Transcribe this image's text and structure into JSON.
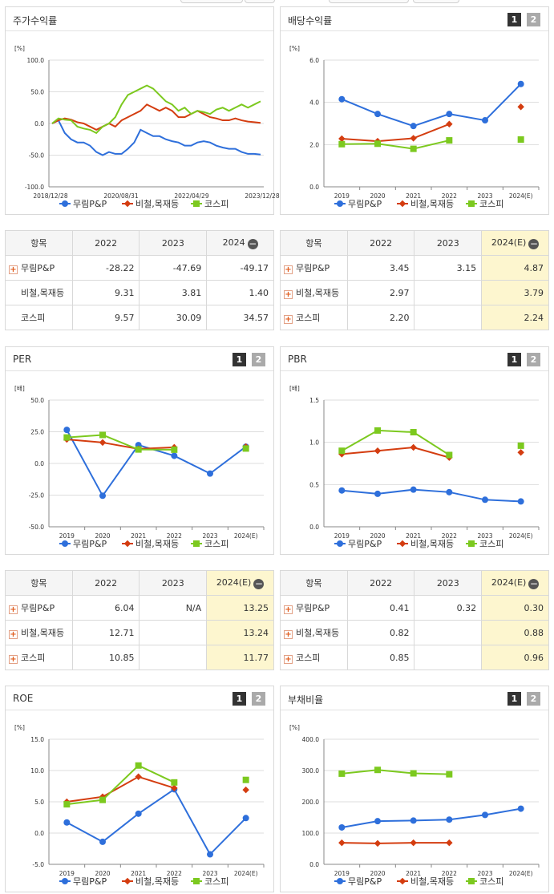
{
  "pager": {
    "p1": "1",
    "p2": "2"
  },
  "legend_names": [
    "무림P&P",
    "비철,목재등",
    "코스피"
  ],
  "colors": {
    "s1": "#2e6fdb",
    "s2": "#d43d10",
    "s3": "#7cc91f"
  },
  "panels": {
    "stock": {
      "title": "주가수익률",
      "unit": "[%]"
    },
    "dividend": {
      "title": "배당수익률",
      "unit": "[%]"
    },
    "per": {
      "title": "PER",
      "unit": "[배]"
    },
    "pbr": {
      "title": "PBR",
      "unit": "[배]"
    },
    "roe": {
      "title": "ROE",
      "unit": "[%]"
    },
    "debt": {
      "title": "부채비율",
      "unit": "[%]"
    }
  },
  "tables": {
    "stock": {
      "head": [
        "항목",
        "2022",
        "2023",
        "2024"
      ],
      "rows": [
        {
          "name": "무림P&P",
          "plus": true,
          "v": [
            "-28.22",
            "-47.69",
            "-49.17"
          ]
        },
        {
          "name": "비철,목재등",
          "plus": false,
          "v": [
            "9.31",
            "3.81",
            "1.40"
          ]
        },
        {
          "name": "코스피",
          "plus": false,
          "v": [
            "9.57",
            "30.09",
            "34.57"
          ]
        }
      ]
    },
    "dividend": {
      "head": [
        "항목",
        "2022",
        "2023",
        "2024(E)"
      ],
      "rows": [
        {
          "name": "무림P&P",
          "plus": true,
          "v": [
            "3.45",
            "3.15",
            "4.87"
          ]
        },
        {
          "name": "비철,목재등",
          "plus": true,
          "v": [
            "2.97",
            "",
            "3.79"
          ]
        },
        {
          "name": "코스피",
          "plus": true,
          "v": [
            "2.20",
            "",
            "2.24"
          ]
        }
      ]
    },
    "per": {
      "head": [
        "항목",
        "2022",
        "2023",
        "2024(E)"
      ],
      "rows": [
        {
          "name": "무림P&P",
          "plus": true,
          "v": [
            "6.04",
            "N/A",
            "13.25"
          ]
        },
        {
          "name": "비철,목재등",
          "plus": true,
          "v": [
            "12.71",
            "",
            "13.24"
          ]
        },
        {
          "name": "코스피",
          "plus": true,
          "v": [
            "10.85",
            "",
            "11.77"
          ]
        }
      ]
    },
    "pbr": {
      "head": [
        "항목",
        "2022",
        "2023",
        "2024(E)"
      ],
      "rows": [
        {
          "name": "무림P&P",
          "plus": true,
          "v": [
            "0.41",
            "0.32",
            "0.30"
          ]
        },
        {
          "name": "비철,목재등",
          "plus": true,
          "v": [
            "0.82",
            "",
            "0.88"
          ]
        },
        {
          "name": "코스피",
          "plus": true,
          "v": [
            "0.85",
            "",
            "0.96"
          ]
        }
      ]
    }
  },
  "chart_data": [
    {
      "id": "stock",
      "type": "line",
      "title": "주가수익률",
      "ylabel": "[%]",
      "ylim": [
        -100,
        100
      ],
      "yticks": [
        "100.0",
        "50.0",
        "0.0",
        "-50.0",
        "-100.0"
      ],
      "xticks": [
        "2018/12/28",
        "2020/08/31",
        "2022/04/29",
        "2023/12/28"
      ],
      "series": [
        {
          "name": "무림P&P",
          "values": [
            0,
            5,
            -15,
            -25,
            -30,
            -30,
            -35,
            -45,
            -50,
            -45,
            -48,
            -48,
            -40,
            -30,
            -10,
            -15,
            -20,
            -20,
            -25,
            -28,
            -30,
            -35,
            -35,
            -30,
            -28,
            -30,
            -35,
            -38,
            -40,
            -40,
            -45,
            -48,
            -48,
            -49
          ]
        },
        {
          "name": "비철,목재등",
          "values": [
            0,
            5,
            8,
            6,
            2,
            0,
            -5,
            -10,
            -5,
            0,
            -5,
            5,
            10,
            15,
            20,
            30,
            25,
            20,
            25,
            20,
            10,
            10,
            15,
            20,
            15,
            10,
            8,
            5,
            5,
            8,
            5,
            3,
            2,
            1
          ]
        },
        {
          "name": "코스피",
          "values": [
            0,
            8,
            6,
            5,
            -5,
            -8,
            -10,
            -15,
            -5,
            0,
            10,
            30,
            45,
            50,
            55,
            60,
            55,
            45,
            35,
            30,
            20,
            25,
            15,
            20,
            18,
            15,
            22,
            25,
            20,
            25,
            30,
            25,
            30,
            35
          ]
        }
      ]
    },
    {
      "id": "dividend",
      "type": "line",
      "title": "배당수익률",
      "ylabel": "[%]",
      "ylim": [
        0,
        6
      ],
      "yticks": [
        "6.0",
        "4.0",
        "2.0",
        "0.0"
      ],
      "categories": [
        "2019",
        "2020",
        "2021",
        "2022",
        "2023",
        "2024(E)"
      ],
      "series": [
        {
          "name": "무림P&P",
          "values": [
            4.15,
            3.45,
            2.88,
            3.45,
            3.15,
            4.87
          ]
        },
        {
          "name": "비철,목재등",
          "values": [
            2.28,
            2.16,
            2.3,
            2.97,
            null,
            3.79
          ]
        },
        {
          "name": "코스피",
          "values": [
            2.02,
            2.04,
            1.8,
            2.2,
            null,
            2.24
          ]
        }
      ]
    },
    {
      "id": "per",
      "type": "line",
      "title": "PER",
      "ylabel": "[배]",
      "ylim": [
        -50,
        50
      ],
      "yticks": [
        "50.0",
        "25.0",
        "0.0",
        "-25.0",
        "-50.0"
      ],
      "categories": [
        "2019",
        "2020",
        "2021",
        "2022",
        "2023",
        "2024(E)"
      ],
      "series": [
        {
          "name": "무림P&P",
          "values": [
            26.5,
            -25.5,
            14.5,
            6.04,
            -8,
            13.25
          ]
        },
        {
          "name": "비철,목재등",
          "values": [
            19,
            16.5,
            11.5,
            12.71,
            null,
            13.24
          ]
        },
        {
          "name": "코스피",
          "values": [
            20.5,
            22.5,
            11,
            10.85,
            null,
            11.77
          ]
        }
      ]
    },
    {
      "id": "pbr",
      "type": "line",
      "title": "PBR",
      "ylabel": "[배]",
      "ylim": [
        0,
        1.5
      ],
      "yticks": [
        "1.5",
        "1.0",
        "0.5",
        "0.0"
      ],
      "categories": [
        "2019",
        "2020",
        "2021",
        "2022",
        "2023",
        "2024(E)"
      ],
      "series": [
        {
          "name": "무림P&P",
          "values": [
            0.43,
            0.39,
            0.44,
            0.41,
            0.32,
            0.3
          ]
        },
        {
          "name": "비철,목재등",
          "values": [
            0.86,
            0.9,
            0.94,
            0.82,
            null,
            0.88
          ]
        },
        {
          "name": "코스피",
          "values": [
            0.9,
            1.14,
            1.12,
            0.85,
            null,
            0.96
          ]
        }
      ]
    },
    {
      "id": "roe",
      "type": "line",
      "title": "ROE",
      "ylabel": "[%]",
      "ylim": [
        -5,
        15
      ],
      "yticks": [
        "15.0",
        "10.0",
        "5.0",
        "0.0",
        "-5.0"
      ],
      "categories": [
        "2019",
        "2020",
        "2021",
        "2022",
        "2023",
        "2024(E)"
      ],
      "series": [
        {
          "name": "무림P&P",
          "values": [
            1.7,
            -1.4,
            3.1,
            7.0,
            -3.4,
            2.4
          ]
        },
        {
          "name": "비철,목재등",
          "values": [
            5.0,
            5.8,
            9.0,
            7.2,
            null,
            6.9
          ]
        },
        {
          "name": "코스피",
          "values": [
            4.6,
            5.3,
            10.8,
            8.1,
            null,
            8.5
          ]
        }
      ]
    },
    {
      "id": "debt",
      "type": "line",
      "title": "부채비율",
      "ylabel": "[%]",
      "ylim": [
        0,
        400
      ],
      "yticks": [
        "400.0",
        "300.0",
        "200.0",
        "100.0",
        "0.0"
      ],
      "categories": [
        "2019",
        "2020",
        "2021",
        "2022",
        "2023",
        "2024(E)"
      ],
      "series": [
        {
          "name": "무림P&P",
          "values": [
            118,
            138,
            140,
            143,
            158,
            178
          ]
        },
        {
          "name": "비철,목재등",
          "values": [
            69,
            67,
            69,
            69,
            null,
            null
          ]
        },
        {
          "name": "코스피",
          "values": [
            290,
            302,
            291,
            288,
            null,
            null
          ]
        }
      ]
    }
  ]
}
